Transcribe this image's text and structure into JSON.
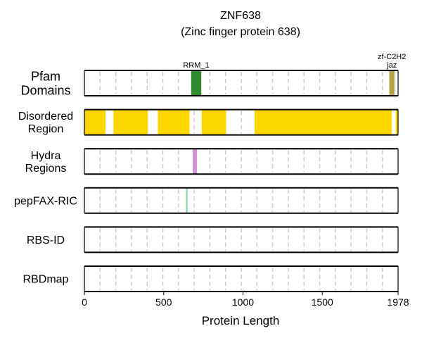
{
  "chart_data": {
    "type": "bar",
    "title": "ZNF638",
    "subtitle": "(Zinc finger protein 638)",
    "xlabel": "Protein Length",
    "xlim": [
      0,
      1978
    ],
    "xticks": [
      0,
      500,
      1000,
      1500,
      1978
    ],
    "grid": true,
    "tracks": [
      {
        "label": [
          "Pfam",
          "Domains"
        ],
        "color": "#2e8b2e",
        "segments": [
          {
            "start": 673,
            "end": 737,
            "label": [
              "RRM_1"
            ],
            "color": "#2e8b2e"
          },
          {
            "start": 1923,
            "end": 1955,
            "label": [
              "zf-C2H2",
              "jaz"
            ],
            "color": "#b5a146"
          }
        ]
      },
      {
        "label": [
          "Disordered",
          "Region"
        ],
        "color": "#ffd700",
        "segments": [
          {
            "start": 0,
            "end": 133
          },
          {
            "start": 183,
            "end": 400
          },
          {
            "start": 463,
            "end": 663
          },
          {
            "start": 740,
            "end": 893
          },
          {
            "start": 1073,
            "end": 1938
          },
          {
            "start": 1963,
            "end": 1978
          }
        ]
      },
      {
        "label": [
          "Hydra",
          "Regions"
        ],
        "color": "#d291d2",
        "segments": [
          {
            "start": 683,
            "end": 710
          }
        ]
      },
      {
        "label": [
          "pepFAX-RIC"
        ],
        "color": "#8fdcb4",
        "segments": [
          {
            "start": 640,
            "end": 651
          }
        ]
      },
      {
        "label": [
          "RBS-ID"
        ],
        "color": "#777777",
        "segments": []
      },
      {
        "label": [
          "RBDmap"
        ],
        "color": "#777777",
        "segments": []
      }
    ]
  }
}
